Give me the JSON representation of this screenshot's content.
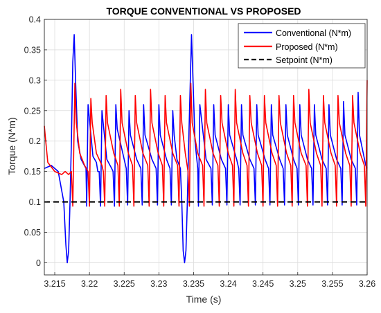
{
  "chart_data": {
    "type": "line",
    "title": "TORQUE CONVENTIONAL VS PROPOSED",
    "xlabel": "Time (s)",
    "ylabel": "Torque (N*m)",
    "xlim": [
      3.2135,
      3.26
    ],
    "ylim": [
      -0.02,
      0.4
    ],
    "xticks": [
      3.215,
      3.22,
      3.225,
      3.23,
      3.235,
      3.24,
      3.245,
      3.25,
      3.255,
      3.26
    ],
    "xtick_labels": [
      "3.215",
      "3.22",
      "3.225",
      "3.23",
      "3.235",
      "3.24",
      "3.245",
      "3.25",
      "3.255",
      "3.26"
    ],
    "yticks": [
      0,
      0.05,
      0.1,
      0.15,
      0.2,
      0.25,
      0.3,
      0.35,
      0.4
    ],
    "ytick_labels": [
      "0",
      "0.05",
      "0.1",
      "0.15",
      "0.2",
      "0.25",
      "0.3",
      "0.35",
      "0.4"
    ],
    "grid": true,
    "legend_position": "top-right",
    "series": [
      {
        "name": "Conventional (N*m)",
        "color": "#0000ff",
        "style": "solid",
        "x": [
          3.2135,
          3.2145,
          3.2155,
          3.2163,
          3.2166,
          3.2168,
          3.217,
          3.2172,
          3.2174,
          3.2176,
          3.2178,
          3.218,
          3.2183,
          3.2188,
          3.2195,
          3.2196,
          3.2198,
          3.2205,
          3.221,
          3.2212,
          3.2214,
          3.2216,
          3.2218,
          3.2225,
          3.2232,
          3.2234,
          3.2236,
          3.2238,
          3.224,
          3.225,
          3.2253,
          3.2255,
          3.2257,
          3.2259,
          3.2268,
          3.2274,
          3.2276,
          3.2278,
          3.228,
          3.229,
          3.2296,
          3.2298,
          3.23,
          3.2302,
          3.2311,
          3.2316,
          3.2318,
          3.232,
          3.2322,
          3.2326,
          3.2331,
          3.2333,
          3.2335,
          3.2337,
          3.2339,
          3.2341,
          3.2343,
          3.2347,
          3.2352,
          3.2356,
          3.2357,
          3.2359,
          3.2368,
          3.2375,
          3.2377,
          3.2379,
          3.2381,
          3.239,
          3.2396,
          3.2398,
          3.24,
          3.2402,
          3.2412,
          3.2415,
          3.2417,
          3.2419,
          3.2421,
          3.2431,
          3.2437,
          3.2439,
          3.2441,
          3.2443,
          3.2453,
          3.2458,
          3.246,
          3.2462,
          3.2464,
          3.2474,
          3.2479,
          3.2481,
          3.2483,
          3.2485,
          3.2494,
          3.2499,
          3.2501,
          3.2503,
          3.2505,
          3.2514,
          3.252,
          3.2522,
          3.2524,
          3.2526,
          3.2535,
          3.2541,
          3.2543,
          3.2545,
          3.2547,
          3.2556,
          3.2562,
          3.2564,
          3.2566,
          3.2568,
          3.2577,
          3.2583,
          3.2585,
          3.2587,
          3.2589,
          3.2598,
          3.26
        ],
        "y": [
          0.155,
          0.16,
          0.15,
          0.1,
          0.03,
          0.0,
          0.02,
          0.1,
          0.2,
          0.33,
          0.375,
          0.3,
          0.2,
          0.17,
          0.155,
          0.093,
          0.26,
          0.175,
          0.165,
          0.15,
          0.15,
          0.093,
          0.25,
          0.17,
          0.155,
          0.15,
          0.093,
          0.26,
          0.22,
          0.17,
          0.155,
          0.095,
          0.25,
          0.21,
          0.17,
          0.155,
          0.095,
          0.26,
          0.21,
          0.17,
          0.155,
          0.095,
          0.26,
          0.21,
          0.17,
          0.155,
          0.095,
          0.25,
          0.21,
          0.17,
          0.155,
          0.1,
          0.02,
          0.0,
          0.02,
          0.1,
          0.2,
          0.375,
          0.2,
          0.155,
          0.093,
          0.26,
          0.17,
          0.155,
          0.095,
          0.26,
          0.21,
          0.17,
          0.155,
          0.095,
          0.26,
          0.21,
          0.17,
          0.155,
          0.095,
          0.26,
          0.21,
          0.17,
          0.155,
          0.095,
          0.26,
          0.21,
          0.17,
          0.155,
          0.095,
          0.26,
          0.21,
          0.17,
          0.155,
          0.095,
          0.26,
          0.21,
          0.17,
          0.155,
          0.095,
          0.26,
          0.21,
          0.17,
          0.155,
          0.095,
          0.26,
          0.21,
          0.17,
          0.155,
          0.095,
          0.26,
          0.21,
          0.17,
          0.155,
          0.095,
          0.265,
          0.21,
          0.17,
          0.155,
          0.095,
          0.28,
          0.21,
          0.16,
          0.155
        ]
      },
      {
        "name": "Proposed (N*m)",
        "color": "#ff0000",
        "style": "solid",
        "x": [
          3.2135,
          3.2137,
          3.214,
          3.215,
          3.216,
          3.2165,
          3.217,
          3.2174,
          3.2176,
          3.2179,
          3.2181,
          3.2186,
          3.2193,
          3.2198,
          3.22,
          3.2202,
          3.2204,
          3.221,
          3.2218,
          3.222,
          3.2222,
          3.2224,
          3.2226,
          3.2235,
          3.2241,
          3.2243,
          3.2245,
          3.2247,
          3.2256,
          3.2262,
          3.2264,
          3.2266,
          3.2268,
          3.2277,
          3.2284,
          3.2286,
          3.2288,
          3.229,
          3.2299,
          3.2305,
          3.2307,
          3.2309,
          3.2311,
          3.232,
          3.2327,
          3.2329,
          3.2331,
          3.2333,
          3.2338,
          3.2342,
          3.2344,
          3.2346,
          3.2348,
          3.2356,
          3.2363,
          3.2365,
          3.2367,
          3.2369,
          3.2378,
          3.2385,
          3.2387,
          3.2389,
          3.2391,
          3.24,
          3.2406,
          3.2408,
          3.241,
          3.2412,
          3.2421,
          3.2427,
          3.2429,
          3.2431,
          3.2433,
          3.2442,
          3.2448,
          3.245,
          3.2452,
          3.2454,
          3.2463,
          3.2469,
          3.2471,
          3.2473,
          3.2475,
          3.2484,
          3.249,
          3.2492,
          3.2494,
          3.2496,
          3.2505,
          3.2512,
          3.2514,
          3.2516,
          3.2518,
          3.2527,
          3.2533,
          3.2535,
          3.2537,
          3.2539,
          3.2548,
          3.2554,
          3.2556,
          3.2558,
          3.256,
          3.2569,
          3.2575,
          3.2577,
          3.2579,
          3.2581,
          3.259,
          3.2596,
          3.2598,
          3.26
        ],
        "y": [
          0.225,
          0.2,
          0.165,
          0.15,
          0.145,
          0.15,
          0.145,
          0.15,
          0.093,
          0.295,
          0.23,
          0.18,
          0.16,
          0.15,
          0.093,
          0.27,
          0.23,
          0.18,
          0.16,
          0.15,
          0.093,
          0.275,
          0.23,
          0.18,
          0.16,
          0.093,
          0.285,
          0.23,
          0.18,
          0.16,
          0.093,
          0.275,
          0.23,
          0.18,
          0.16,
          0.093,
          0.285,
          0.23,
          0.18,
          0.16,
          0.093,
          0.275,
          0.23,
          0.18,
          0.16,
          0.093,
          0.275,
          0.23,
          0.18,
          0.15,
          0.093,
          0.295,
          0.23,
          0.18,
          0.16,
          0.093,
          0.285,
          0.23,
          0.18,
          0.16,
          0.093,
          0.275,
          0.23,
          0.18,
          0.16,
          0.093,
          0.285,
          0.23,
          0.18,
          0.16,
          0.093,
          0.275,
          0.23,
          0.18,
          0.16,
          0.093,
          0.275,
          0.23,
          0.18,
          0.16,
          0.093,
          0.275,
          0.23,
          0.18,
          0.16,
          0.093,
          0.275,
          0.23,
          0.18,
          0.16,
          0.093,
          0.285,
          0.23,
          0.18,
          0.16,
          0.093,
          0.275,
          0.23,
          0.18,
          0.16,
          0.093,
          0.275,
          0.23,
          0.18,
          0.16,
          0.093,
          0.275,
          0.23,
          0.18,
          0.16,
          0.093,
          0.3
        ]
      },
      {
        "name": "Setpoint (N*m)",
        "color": "#000000",
        "style": "dashed",
        "x": [
          3.2135,
          3.26
        ],
        "y": [
          0.1,
          0.1
        ]
      }
    ]
  }
}
